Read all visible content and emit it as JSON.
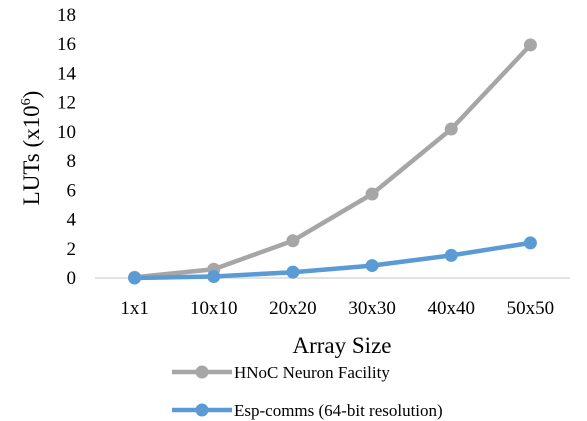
{
  "chart_data": {
    "type": "line",
    "categories": [
      "1x1",
      "10x10",
      "20x20",
      "30x30",
      "40x40",
      "50x50"
    ],
    "series": [
      {
        "name": "HNoC Neuron Facility",
        "color": "#a6a6a6",
        "values": [
          0.05,
          0.6,
          2.55,
          5.75,
          10.2,
          15.95
        ]
      },
      {
        "name": "Esp-comms (64-bit resolution)",
        "color": "#5b9bd5",
        "values": [
          0.0,
          0.1,
          0.4,
          0.85,
          1.55,
          2.4
        ]
      }
    ],
    "xlabel": "Array Size",
    "ylabel": "LUTs (x10",
    "ylabel_exp": "6",
    "ylabel_close": ")",
    "ylim": [
      0,
      18
    ],
    "yticks": [
      0,
      2,
      4,
      6,
      8,
      10,
      12,
      14,
      16,
      18
    ],
    "grid": false,
    "legend_position": "bottom"
  }
}
